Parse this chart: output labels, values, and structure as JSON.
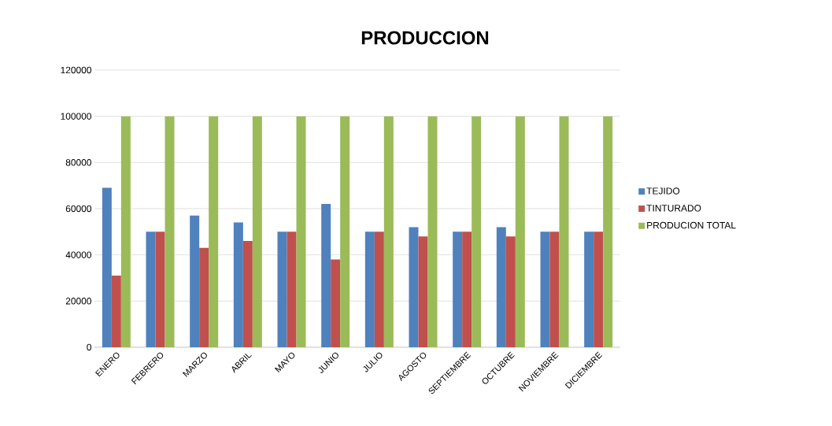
{
  "chart_data": {
    "type": "bar",
    "title": "PRODUCCION",
    "categories": [
      "ENERO",
      "FEBRERO",
      "MARZO",
      "ABRIL",
      "MAYO",
      "JUNIO",
      "JULIO",
      "AGOSTO",
      "SEPTIEMBRE",
      "OCTUBRE",
      "NOVIEMBRE",
      "DICIEMBRE"
    ],
    "series": [
      {
        "name": "TEJIDO",
        "color": "#4f81bd",
        "values": [
          69000,
          50000,
          57000,
          54000,
          50000,
          62000,
          50000,
          52000,
          50000,
          52000,
          50000,
          50000
        ]
      },
      {
        "name": "TINTURADO",
        "color": "#c0504d",
        "values": [
          31000,
          50000,
          43000,
          46000,
          50000,
          38000,
          50000,
          48000,
          50000,
          48000,
          50000,
          50000
        ]
      },
      {
        "name": "PRODUCION TOTAL",
        "color": "#9bbb59",
        "values": [
          100000,
          100000,
          100000,
          100000,
          100000,
          100000,
          100000,
          100000,
          100000,
          100000,
          100000,
          100000
        ]
      }
    ],
    "ylim": [
      0,
      120000
    ],
    "yticks": [
      0,
      20000,
      40000,
      60000,
      80000,
      100000,
      120000
    ],
    "grid": "y",
    "legend": "right"
  }
}
